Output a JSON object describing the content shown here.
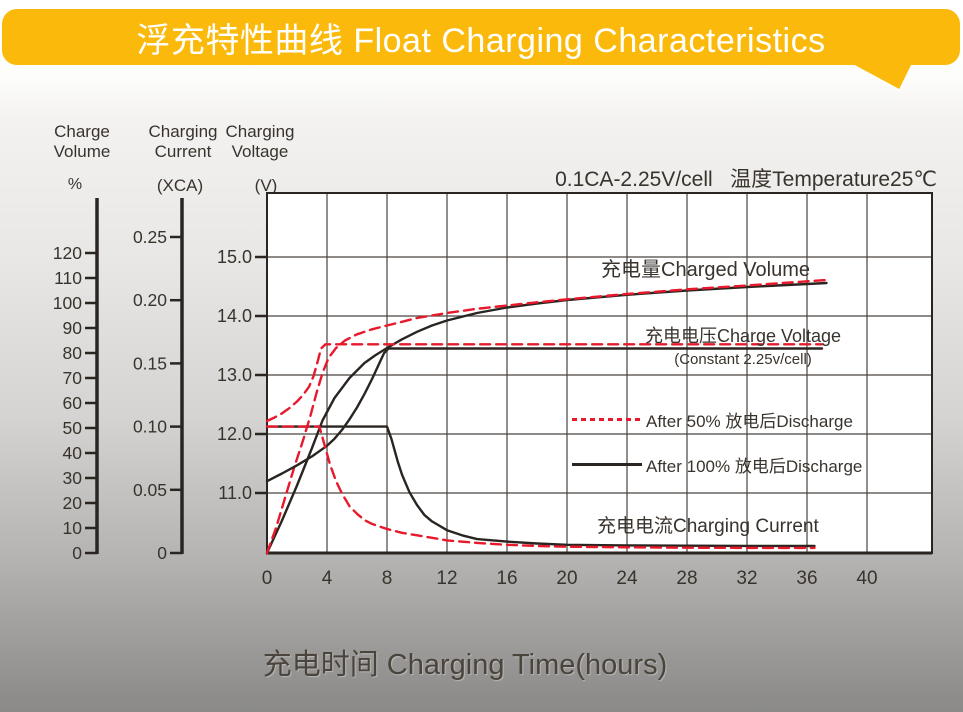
{
  "header": {
    "title": "浮充特性曲线 Float Charging Characteristics"
  },
  "annotation": "0.1CA-2.25V/cell   温度Temperature25℃",
  "axis_headers": {
    "charge_volume": {
      "line1": "Charge",
      "line2": "Volume",
      "unit": "%"
    },
    "charging_current": {
      "line1": "Charging",
      "line2": "Current",
      "unit": "(XCA)"
    },
    "charging_voltage": {
      "line1": "Charging",
      "line2": "Voltage",
      "unit": "(V)"
    }
  },
  "labels": {
    "charged_volume": "充电量Charged Volume",
    "charge_voltage": "充电电压Charge Voltage",
    "charge_voltage_sub": "(Constant 2.25v/cell)",
    "charging_current": "充电电流Charging Current"
  },
  "legend": [
    {
      "label": "After 50% 放电后Discharge",
      "style": "dashed",
      "color": "#e8192c"
    },
    {
      "label": "After 100% 放电后Discharge",
      "style": "solid",
      "color": "#2a2521"
    }
  ],
  "colors": {
    "banner_gold": "#fbba0b",
    "red": "#e8192c",
    "curve_black": "#2a2521",
    "ink": "#39332d",
    "grid": "#4a4440",
    "plot_bg": "#ffffff"
  },
  "chart_data": {
    "type": "line",
    "title": "浮充特性曲线 Float Charging Characteristics",
    "condition": "0.1CA-2.25V/cell   温度Temperature25℃",
    "x_axis": {
      "label": "充电时间 Charging Time(hours)",
      "ticks": [
        "0",
        "4",
        "8",
        "12",
        "16",
        "20",
        "24",
        "28",
        "32",
        "36",
        "40"
      ],
      "range": [
        0,
        44
      ]
    },
    "y_axes": {
      "charge_volume_pct": {
        "name": "Charge Volume (%)",
        "ticks": [
          "0",
          "10",
          "20",
          "30",
          "40",
          "50",
          "60",
          "70",
          "80",
          "90",
          "100",
          "110",
          "120"
        ],
        "range": [
          0,
          130
        ]
      },
      "charging_current_xca": {
        "name": "Charging Current (XCA)",
        "ticks": [
          "0",
          "0.05",
          "0.10",
          "0.15",
          "0.20",
          "0.25"
        ],
        "range": [
          0,
          0.285
        ]
      },
      "charging_voltage_v": {
        "name": "Charging Voltage (V)",
        "ticks": [
          "11.0",
          "12.0",
          "13.0",
          "14.0",
          "15.0"
        ],
        "range": [
          10,
          16.1
        ]
      }
    },
    "grid": true,
    "series": [
      {
        "name": "charged-volume-after-100pct-discharge",
        "group": "充电量Charged Volume",
        "legend": "After 100% 放电后Discharge",
        "axis": "percent",
        "color": "#2a2521",
        "dash": null,
        "points": [
          [
            0,
            0
          ],
          [
            1,
            13
          ],
          [
            2,
            27
          ],
          [
            3,
            42
          ],
          [
            3.7,
            53
          ],
          [
            4.5,
            62
          ],
          [
            5.5,
            70
          ],
          [
            6.5,
            76
          ],
          [
            7.2,
            79
          ],
          [
            8,
            82
          ],
          [
            9,
            85.5
          ],
          [
            10,
            88.5
          ],
          [
            11,
            91
          ],
          [
            12,
            93
          ],
          [
            14,
            96
          ],
          [
            16,
            98.2
          ],
          [
            18,
            99.8
          ],
          [
            20,
            101.2
          ],
          [
            24,
            103.3
          ],
          [
            28,
            105
          ],
          [
            32,
            106.4
          ],
          [
            36,
            107.6
          ],
          [
            37.3,
            108
          ]
        ]
      },
      {
        "name": "charged-volume-after-50pct-discharge",
        "group": "充电量Charged Volume",
        "legend": "After 50% 放电后Discharge",
        "axis": "percent",
        "color": "#e8192c",
        "dash": "10 6",
        "points": [
          [
            0,
            0
          ],
          [
            0.6,
            10
          ],
          [
            1.2,
            22
          ],
          [
            1.8,
            34
          ],
          [
            2.4,
            45
          ],
          [
            2.9,
            55
          ],
          [
            3.3,
            64
          ],
          [
            3.7,
            72
          ],
          [
            4.1,
            78
          ],
          [
            4.6,
            82
          ],
          [
            5.2,
            85
          ],
          [
            6,
            87.5
          ],
          [
            7,
            89.5
          ],
          [
            8,
            91
          ],
          [
            9,
            92.5
          ],
          [
            10,
            94
          ],
          [
            12,
            96
          ],
          [
            14,
            97.7
          ],
          [
            16,
            99
          ],
          [
            18,
            100.3
          ],
          [
            20,
            101.5
          ],
          [
            24,
            103.6
          ],
          [
            28,
            105.5
          ],
          [
            32,
            107
          ],
          [
            36,
            108.7
          ],
          [
            37.3,
            109.2
          ]
        ]
      },
      {
        "name": "charge-voltage-after-100pct-discharge",
        "group": "充电电压Charge Voltage (Constant 2.25v/cell)",
        "legend": "After 100% 放电后Discharge",
        "axis": "voltage",
        "color": "#2a2521",
        "dash": null,
        "points": [
          [
            0,
            11.2
          ],
          [
            1,
            11.33
          ],
          [
            2,
            11.47
          ],
          [
            3,
            11.62
          ],
          [
            4,
            11.8
          ],
          [
            4.5,
            11.92
          ],
          [
            5,
            12.07
          ],
          [
            5.5,
            12.25
          ],
          [
            6,
            12.45
          ],
          [
            6.5,
            12.68
          ],
          [
            7,
            12.93
          ],
          [
            7.4,
            13.15
          ],
          [
            7.8,
            13.37
          ],
          [
            8.1,
            13.45
          ],
          [
            37,
            13.45
          ]
        ]
      },
      {
        "name": "charge-voltage-after-50pct-discharge",
        "group": "充电电压Charge Voltage (Constant 2.25v/cell)",
        "legend": "After 50% 放电后Discharge",
        "axis": "voltage",
        "color": "#e8192c",
        "dash": "10 6",
        "points": [
          [
            0,
            12.22
          ],
          [
            0.5,
            12.28
          ],
          [
            1,
            12.35
          ],
          [
            1.5,
            12.44
          ],
          [
            2,
            12.55
          ],
          [
            2.4,
            12.66
          ],
          [
            2.8,
            12.8
          ],
          [
            3.1,
            12.98
          ],
          [
            3.4,
            13.25
          ],
          [
            3.6,
            13.45
          ],
          [
            3.9,
            13.52
          ],
          [
            37,
            13.52
          ]
        ]
      },
      {
        "name": "charging-current-after-100pct-discharge",
        "group": "充电电流Charging Current",
        "legend": "After 100% 放电后Discharge",
        "axis": "current",
        "color": "#2a2521",
        "dash": null,
        "points": [
          [
            0,
            0.1
          ],
          [
            8,
            0.1
          ],
          [
            8.3,
            0.09
          ],
          [
            8.7,
            0.073
          ],
          [
            9,
            0.062
          ],
          [
            9.5,
            0.048
          ],
          [
            10,
            0.038
          ],
          [
            10.5,
            0.03
          ],
          [
            11,
            0.025
          ],
          [
            12,
            0.018
          ],
          [
            13,
            0.014
          ],
          [
            14,
            0.011
          ],
          [
            16,
            0.009
          ],
          [
            18,
            0.0075
          ],
          [
            20,
            0.0065
          ],
          [
            24,
            0.006
          ],
          [
            28,
            0.0058
          ],
          [
            32,
            0.0056
          ],
          [
            36.5,
            0.0055
          ]
        ]
      },
      {
        "name": "charging-current-after-50pct-discharge",
        "group": "充电电流Charging Current",
        "legend": "After 50% 放电后Discharge",
        "axis": "current",
        "color": "#e8192c",
        "dash": "10 6",
        "points": [
          [
            0,
            0.1
          ],
          [
            3.5,
            0.1
          ],
          [
            3.8,
            0.087
          ],
          [
            4.2,
            0.07
          ],
          [
            4.6,
            0.057
          ],
          [
            5,
            0.047
          ],
          [
            5.5,
            0.037
          ],
          [
            6,
            0.031
          ],
          [
            6.5,
            0.026
          ],
          [
            7,
            0.023
          ],
          [
            8,
            0.019
          ],
          [
            9,
            0.016
          ],
          [
            10,
            0.014
          ],
          [
            11,
            0.012
          ],
          [
            12,
            0.01
          ],
          [
            14,
            0.008
          ],
          [
            16,
            0.0065
          ],
          [
            18,
            0.0055
          ],
          [
            20,
            0.005
          ],
          [
            24,
            0.0045
          ],
          [
            28,
            0.0042
          ],
          [
            32,
            0.004
          ],
          [
            36.5,
            0.004
          ]
        ]
      }
    ]
  }
}
